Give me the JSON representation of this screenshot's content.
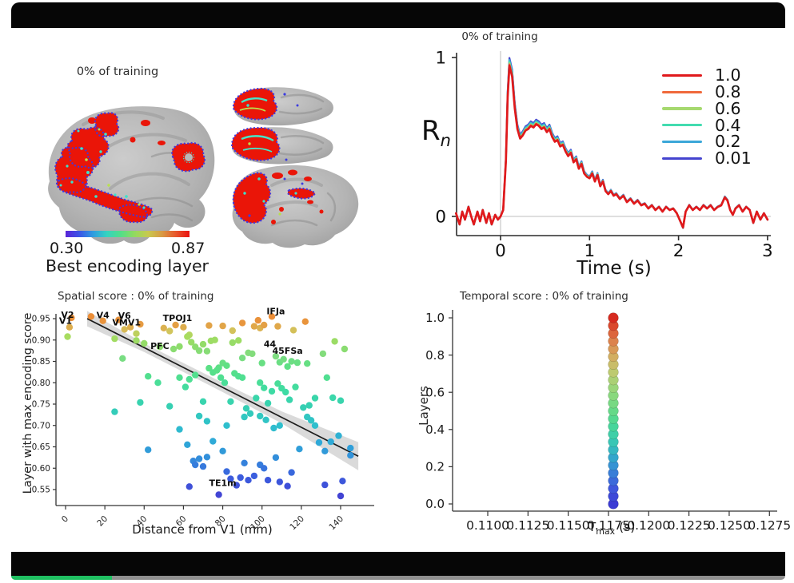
{
  "video": {
    "progress_percent": 13
  },
  "brain_panel": {
    "title": "0% of training",
    "colorbar_min": "0.30",
    "colorbar_max": "0.87",
    "colorbar_label": "Best encoding layer",
    "colorbar_colors": [
      "#5a24d8",
      "#3b55e6",
      "#2f9ce0",
      "#35d3c0",
      "#52de8a",
      "#92da5e",
      "#c8c94e",
      "#d89a44",
      "#e8582c",
      "#ea1210"
    ]
  },
  "chart_data": [
    {
      "id": "response_curve",
      "type": "line",
      "title": "0% of training",
      "ylabel_main": "R",
      "ylabel_sub": "n",
      "xlabel": "Time (s)",
      "xlim": [
        -0.5,
        3.0
      ],
      "ylim": [
        -0.12,
        1.02
      ],
      "xticks": [
        0,
        1,
        2,
        3
      ],
      "yticks": [
        0,
        1
      ],
      "grid": "zero-guides-only",
      "legend_position": "upper right",
      "legend": [
        {
          "label": "1.0",
          "color": "#e0191c",
          "scale": 1.0
        },
        {
          "label": "0.8",
          "color": "#f0693b",
          "scale": 1.007
        },
        {
          "label": "0.6",
          "color": "#a6d96f",
          "scale": 1.015
        },
        {
          "label": "0.4",
          "color": "#43dcb0",
          "scale": 1.025
        },
        {
          "label": "0.2",
          "color": "#3ba7d8",
          "scale": 1.037
        },
        {
          "label": "0.01",
          "color": "#4544cf",
          "scale": 1.05
        }
      ],
      "t": [
        -0.5,
        -0.46,
        -0.43,
        -0.4,
        -0.36,
        -0.33,
        -0.3,
        -0.26,
        -0.23,
        -0.2,
        -0.16,
        -0.13,
        -0.1,
        -0.06,
        -0.03,
        0.0,
        0.03,
        0.06,
        0.08,
        0.1,
        0.13,
        0.16,
        0.19,
        0.22,
        0.25,
        0.28,
        0.31,
        0.34,
        0.37,
        0.4,
        0.43,
        0.46,
        0.49,
        0.52,
        0.55,
        0.58,
        0.61,
        0.64,
        0.67,
        0.7,
        0.73,
        0.76,
        0.79,
        0.82,
        0.85,
        0.88,
        0.91,
        0.94,
        0.97,
        1.0,
        1.03,
        1.06,
        1.09,
        1.12,
        1.15,
        1.18,
        1.21,
        1.24,
        1.27,
        1.3,
        1.34,
        1.38,
        1.42,
        1.46,
        1.5,
        1.54,
        1.58,
        1.62,
        1.66,
        1.7,
        1.74,
        1.78,
        1.82,
        1.86,
        1.9,
        1.94,
        1.98,
        2.02,
        2.05,
        2.08,
        2.12,
        2.16,
        2.2,
        2.24,
        2.28,
        2.32,
        2.36,
        2.4,
        2.44,
        2.48,
        2.52,
        2.55,
        2.58,
        2.61,
        2.64,
        2.68,
        2.72,
        2.76,
        2.8,
        2.84,
        2.88,
        2.92,
        2.96,
        3.0
      ],
      "r": [
        0.02,
        -0.05,
        0.03,
        -0.02,
        0.06,
        0.0,
        -0.05,
        0.03,
        -0.03,
        0.04,
        -0.04,
        0.02,
        -0.05,
        0.01,
        -0.02,
        0.0,
        0.04,
        0.35,
        0.75,
        0.95,
        0.88,
        0.68,
        0.55,
        0.49,
        0.51,
        0.54,
        0.55,
        0.57,
        0.56,
        0.58,
        0.57,
        0.55,
        0.56,
        0.53,
        0.55,
        0.5,
        0.47,
        0.48,
        0.44,
        0.45,
        0.41,
        0.38,
        0.4,
        0.34,
        0.36,
        0.3,
        0.33,
        0.27,
        0.25,
        0.24,
        0.27,
        0.22,
        0.26,
        0.19,
        0.22,
        0.16,
        0.14,
        0.16,
        0.13,
        0.14,
        0.11,
        0.13,
        0.09,
        0.11,
        0.08,
        0.1,
        0.07,
        0.08,
        0.05,
        0.07,
        0.04,
        0.06,
        0.03,
        0.06,
        0.04,
        0.05,
        0.02,
        -0.03,
        -0.07,
        0.03,
        0.07,
        0.04,
        0.06,
        0.04,
        0.07,
        0.05,
        0.07,
        0.04,
        0.06,
        0.07,
        0.12,
        0.1,
        0.04,
        0.01,
        0.05,
        0.07,
        0.03,
        0.06,
        0.04,
        -0.04,
        0.03,
        -0.02,
        0.02,
        -0.02
      ]
    },
    {
      "id": "spatial_score",
      "type": "scatter",
      "title": "Spatial score : 0% of training",
      "xlabel": "Distance from V1 (mm)",
      "ylabel": "Layer with max encoding score",
      "xticks": [
        0,
        20,
        40,
        60,
        80,
        100,
        120,
        140
      ],
      "yticks": [
        0.95,
        0.9,
        0.85,
        0.8,
        0.75,
        0.7,
        0.65,
        0.6,
        0.55
      ],
      "xlim": [
        -5,
        152
      ],
      "ylim": [
        0.52,
        0.97
      ],
      "colormap": [
        [
          0.0,
          "#4340d2"
        ],
        [
          0.12,
          "#3b5ede"
        ],
        [
          0.21,
          "#338cdb"
        ],
        [
          0.3,
          "#2fa8d8"
        ],
        [
          0.4,
          "#2fc0cc"
        ],
        [
          0.49,
          "#35cfb4"
        ],
        [
          0.58,
          "#3edba4"
        ],
        [
          0.65,
          "#4fdf92"
        ],
        [
          0.72,
          "#5ee083"
        ],
        [
          0.77,
          "#7edc82"
        ],
        [
          0.83,
          "#8fdc6a"
        ],
        [
          0.88,
          "#a8dc60"
        ],
        [
          0.91,
          "#d2c45c"
        ],
        [
          0.95,
          "#e8973f"
        ],
        [
          1.0,
          "#ec8a33"
        ]
      ],
      "value_range": [
        0.53,
        0.96
      ],
      "regression": {
        "x1": 11,
        "y1": 0.95,
        "x2": 149,
        "y2": 0.628
      },
      "band": {
        "x": [
          11,
          40,
          80,
          110,
          149
        ],
        "upper": [
          0.968,
          0.892,
          0.8,
          0.733,
          0.661
        ],
        "lower": [
          0.932,
          0.872,
          0.778,
          0.705,
          0.595
        ]
      },
      "region_labels": [
        {
          "text": "V2",
          "x": 1,
          "y": 0.952
        },
        {
          "text": "V1",
          "x": 0,
          "y": 0.938
        },
        {
          "text": "V4",
          "x": 19,
          "y": 0.951
        },
        {
          "text": "V6",
          "x": 30,
          "y": 0.95
        },
        {
          "text": "VMV1",
          "x": 31,
          "y": 0.934
        },
        {
          "text": "TPOJ1",
          "x": 57,
          "y": 0.944
        },
        {
          "text": "IFJa",
          "x": 107,
          "y": 0.96
        },
        {
          "text": "PFC",
          "x": 48,
          "y": 0.879
        },
        {
          "text": "44",
          "x": 104,
          "y": 0.884
        },
        {
          "text": "45FSa",
          "x": 113,
          "y": 0.868
        },
        {
          "text": "TE1m",
          "x": 80,
          "y": 0.558
        }
      ],
      "points": [
        [
          1,
          0.908
        ],
        [
          2,
          0.93
        ],
        [
          3,
          0.952
        ],
        [
          13,
          0.955
        ],
        [
          19,
          0.945
        ],
        [
          27,
          0.947
        ],
        [
          30,
          0.925
        ],
        [
          33,
          0.93
        ],
        [
          36,
          0.915
        ],
        [
          38,
          0.937
        ],
        [
          50,
          0.928
        ],
        [
          53,
          0.921
        ],
        [
          56,
          0.935
        ],
        [
          60,
          0.93
        ],
        [
          63,
          0.912
        ],
        [
          73,
          0.934
        ],
        [
          80,
          0.933
        ],
        [
          85,
          0.922
        ],
        [
          90,
          0.94
        ],
        [
          96,
          0.932
        ],
        [
          98,
          0.946
        ],
        [
          99,
          0.928
        ],
        [
          101,
          0.935
        ],
        [
          105,
          0.955
        ],
        [
          108,
          0.932
        ],
        [
          116,
          0.923
        ],
        [
          122,
          0.943
        ],
        [
          25,
          0.903
        ],
        [
          29,
          0.857
        ],
        [
          36,
          0.899
        ],
        [
          40,
          0.892
        ],
        [
          48,
          0.884
        ],
        [
          55,
          0.879
        ],
        [
          58,
          0.885
        ],
        [
          62,
          0.908
        ],
        [
          64,
          0.895
        ],
        [
          66,
          0.884
        ],
        [
          68,
          0.875
        ],
        [
          70,
          0.89
        ],
        [
          72,
          0.874
        ],
        [
          74,
          0.898
        ],
        [
          76,
          0.9
        ],
        [
          78,
          0.835
        ],
        [
          80,
          0.846
        ],
        [
          82,
          0.84
        ],
        [
          85,
          0.894
        ],
        [
          88,
          0.899
        ],
        [
          90,
          0.858
        ],
        [
          93,
          0.87
        ],
        [
          95,
          0.868
        ],
        [
          100,
          0.846
        ],
        [
          107,
          0.862
        ],
        [
          109,
          0.848
        ],
        [
          111,
          0.855
        ],
        [
          113,
          0.838
        ],
        [
          115,
          0.85
        ],
        [
          118,
          0.847
        ],
        [
          123,
          0.845
        ],
        [
          131,
          0.868
        ],
        [
          137,
          0.897
        ],
        [
          142,
          0.879
        ],
        [
          25,
          0.732
        ],
        [
          38,
          0.754
        ],
        [
          42,
          0.815
        ],
        [
          47,
          0.8
        ],
        [
          53,
          0.745
        ],
        [
          58,
          0.812
        ],
        [
          61,
          0.79
        ],
        [
          63,
          0.808
        ],
        [
          66,
          0.818
        ],
        [
          70,
          0.756
        ],
        [
          73,
          0.834
        ],
        [
          75,
          0.824
        ],
        [
          77,
          0.829
        ],
        [
          79,
          0.812
        ],
        [
          81,
          0.8
        ],
        [
          84,
          0.756
        ],
        [
          86,
          0.822
        ],
        [
          88,
          0.815
        ],
        [
          90,
          0.812
        ],
        [
          92,
          0.74
        ],
        [
          94,
          0.728
        ],
        [
          97,
          0.764
        ],
        [
          99,
          0.8
        ],
        [
          101,
          0.788
        ],
        [
          103,
          0.752
        ],
        [
          105,
          0.78
        ],
        [
          108,
          0.798
        ],
        [
          110,
          0.787
        ],
        [
          112,
          0.778
        ],
        [
          114,
          0.76
        ],
        [
          117,
          0.79
        ],
        [
          121,
          0.742
        ],
        [
          124,
          0.747
        ],
        [
          127,
          0.764
        ],
        [
          133,
          0.812
        ],
        [
          136,
          0.765
        ],
        [
          140,
          0.758
        ],
        [
          42,
          0.643
        ],
        [
          58,
          0.691
        ],
        [
          62,
          0.655
        ],
        [
          68,
          0.722
        ],
        [
          72,
          0.71
        ],
        [
          82,
          0.7
        ],
        [
          91,
          0.72
        ],
        [
          99,
          0.722
        ],
        [
          102,
          0.713
        ],
        [
          106,
          0.694
        ],
        [
          109,
          0.7
        ],
        [
          119,
          0.645
        ],
        [
          123,
          0.72
        ],
        [
          125,
          0.712
        ],
        [
          127,
          0.7
        ],
        [
          129,
          0.66
        ],
        [
          132,
          0.64
        ],
        [
          135,
          0.662
        ],
        [
          139,
          0.676
        ],
        [
          145,
          0.647
        ],
        [
          63,
          0.557
        ],
        [
          65,
          0.617
        ],
        [
          66,
          0.608
        ],
        [
          68,
          0.622
        ],
        [
          70,
          0.604
        ],
        [
          72,
          0.626
        ],
        [
          75,
          0.663
        ],
        [
          78,
          0.538
        ],
        [
          80,
          0.64
        ],
        [
          82,
          0.592
        ],
        [
          84,
          0.575
        ],
        [
          87,
          0.56
        ],
        [
          89,
          0.578
        ],
        [
          91,
          0.612
        ],
        [
          93,
          0.572
        ],
        [
          96,
          0.582
        ],
        [
          99,
          0.608
        ],
        [
          101,
          0.6
        ],
        [
          103,
          0.572
        ],
        [
          107,
          0.625
        ],
        [
          109,
          0.568
        ],
        [
          113,
          0.558
        ],
        [
          115,
          0.59
        ],
        [
          132,
          0.561
        ],
        [
          140,
          0.535
        ],
        [
          141,
          0.57
        ],
        [
          145,
          0.63
        ]
      ]
    },
    {
      "id": "temporal_score",
      "type": "scatter",
      "title": "Temporal score : 0% of training",
      "xlabel_main": "T",
      "xlabel_sub": "max",
      "xlabel_unit": " (s)",
      "ylabel": "Layers",
      "xticks": [
        "0.1100",
        "0.1125",
        "0.1150",
        "0.1175",
        "0.1200",
        "0.1225",
        "0.1250",
        "0.1275"
      ],
      "yticks": [
        "0.0",
        "0.2",
        "0.4",
        "0.6",
        "0.8",
        "1.0"
      ],
      "xlim": [
        0.1088,
        0.1288
      ],
      "ylim": [
        -0.04,
        1.04
      ],
      "n_layers": 25,
      "dot_x": 0.1178,
      "colormap": [
        [
          0.0,
          "#3b3bd4"
        ],
        [
          0.08,
          "#3f55dc"
        ],
        [
          0.16,
          "#3a7bd8"
        ],
        [
          0.24,
          "#33a2cf"
        ],
        [
          0.32,
          "#36c3b9"
        ],
        [
          0.4,
          "#43d4a0"
        ],
        [
          0.48,
          "#5cd98a"
        ],
        [
          0.56,
          "#7fd981"
        ],
        [
          0.64,
          "#a0d478"
        ],
        [
          0.72,
          "#c2c86e"
        ],
        [
          0.8,
          "#d4ab60"
        ],
        [
          0.88,
          "#dd7f4b"
        ],
        [
          0.94,
          "#dc5533"
        ],
        [
          1.0,
          "#d62a1f"
        ]
      ]
    }
  ]
}
